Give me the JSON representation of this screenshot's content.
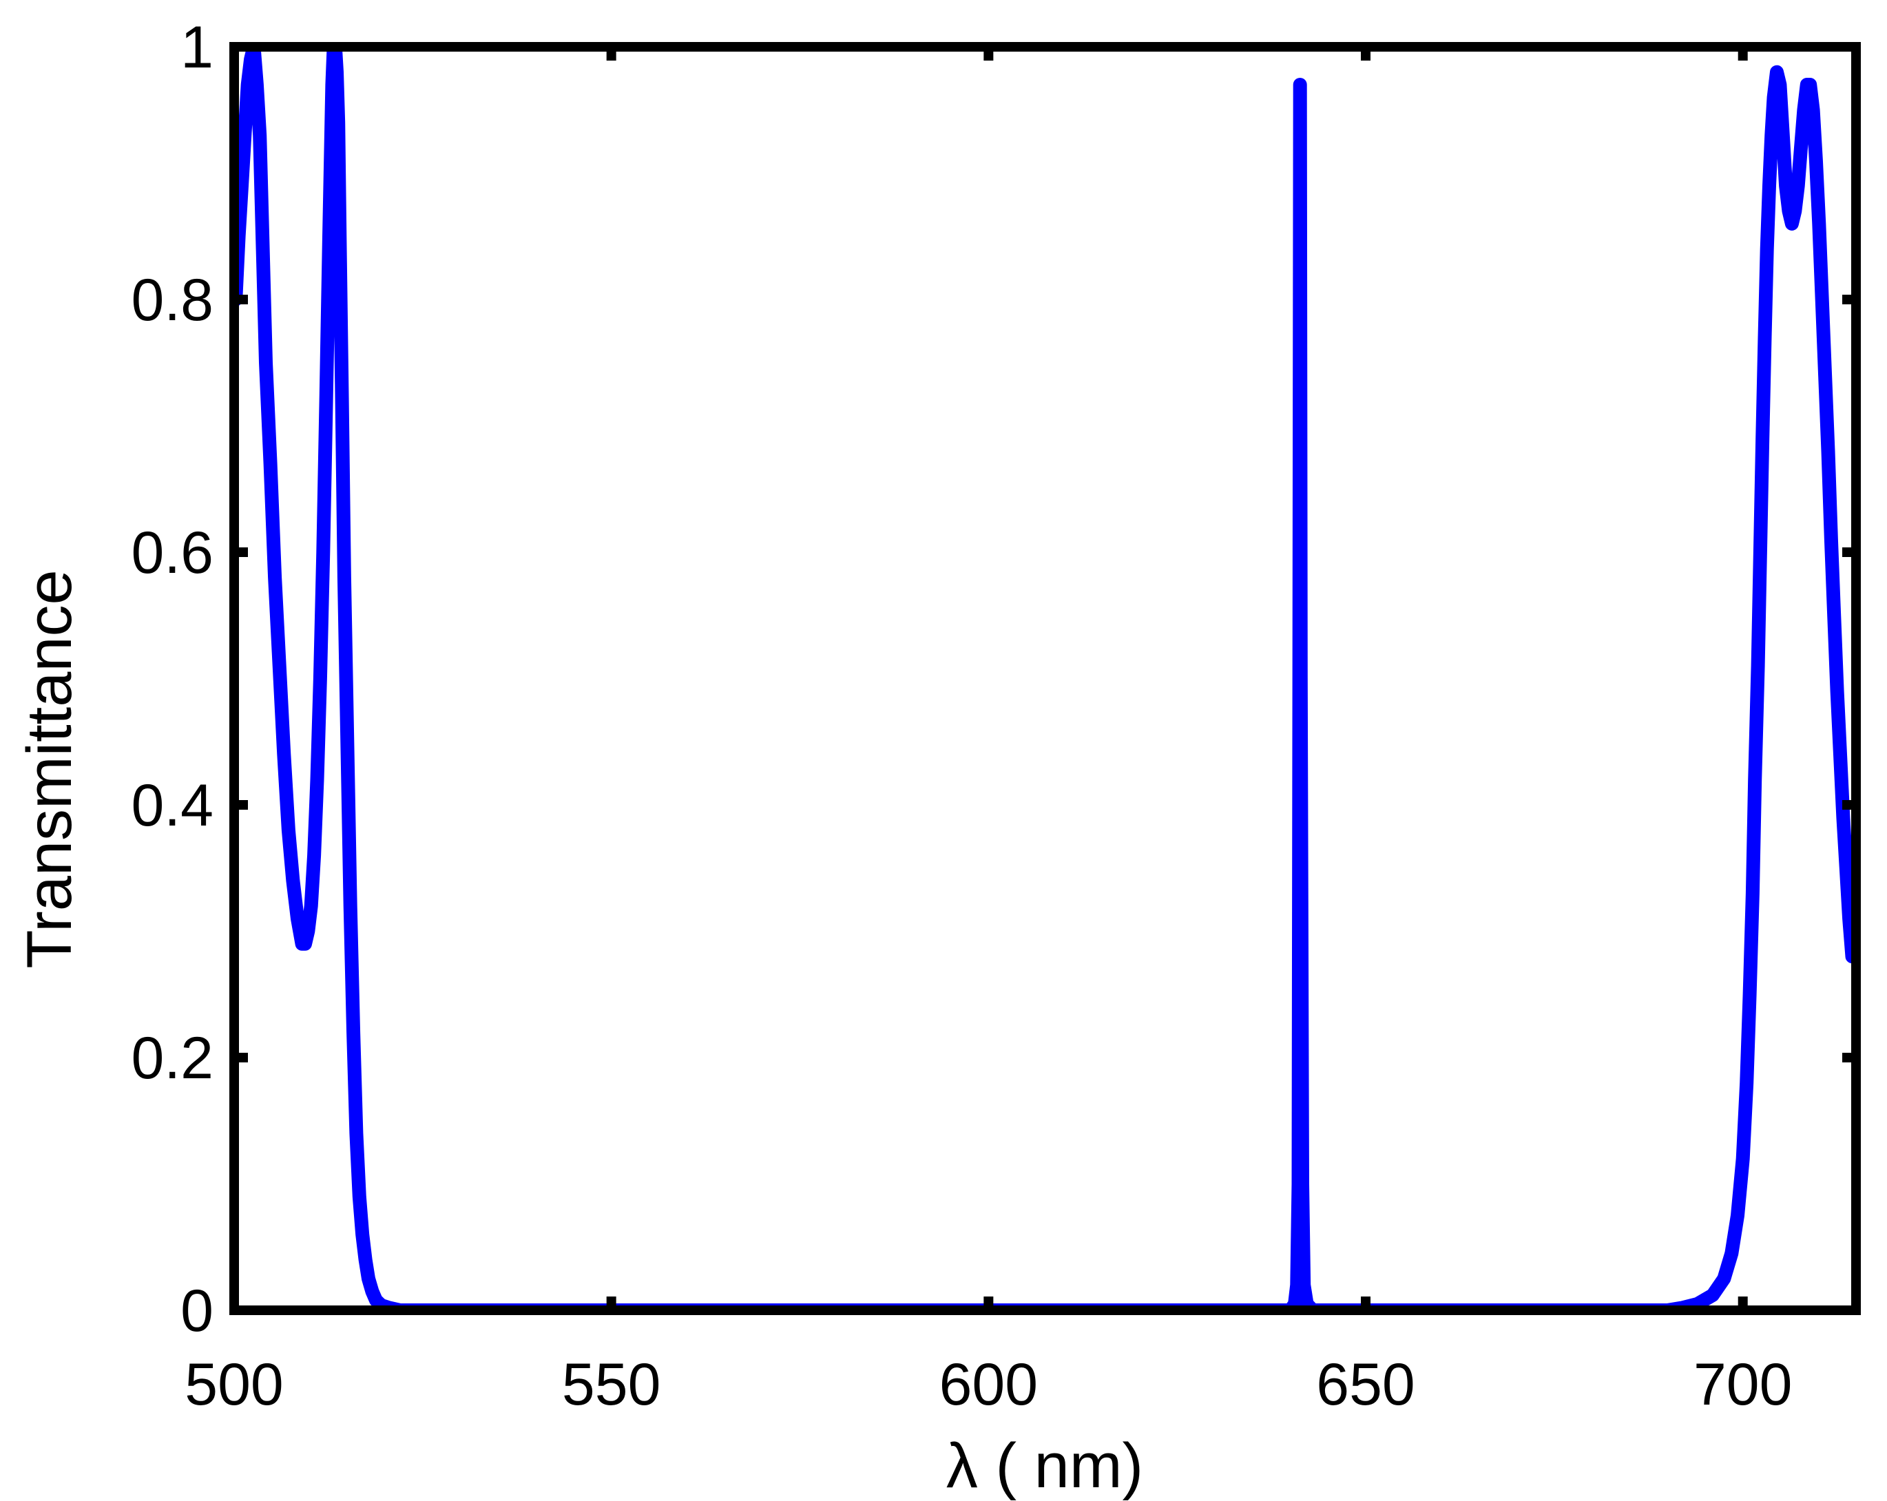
{
  "chart_data": {
    "type": "line",
    "title": "",
    "xlabel": "λ ( nm)",
    "ylabel": "Transmittance",
    "xlim": [
      500,
      715
    ],
    "ylim": [
      0,
      1
    ],
    "xticks": [
      500,
      550,
      600,
      650,
      700
    ],
    "xtick_labels": [
      "500",
      "550",
      "600",
      "650",
      "700"
    ],
    "yticks": [
      0,
      0.2,
      0.4,
      0.6,
      0.8,
      1
    ],
    "ytick_labels": [
      "0",
      "0.2",
      "0.4",
      "0.6",
      "0.8",
      "1"
    ],
    "grid": false,
    "legend": "none",
    "colors": {
      "line": "#0000ff",
      "axes": "#000000"
    },
    "series": [
      {
        "x": [
          500.2,
          500.6,
          501.0,
          501.4,
          501.8,
          502.2,
          502.6,
          503.0,
          503.4,
          503.8,
          504.2,
          504.8,
          505.4,
          506.0,
          506.6,
          507.2,
          507.8,
          508.4,
          509.0,
          509.4,
          509.8,
          510.2,
          510.6,
          511.0,
          511.4,
          511.8,
          512.2,
          512.6,
          513.0,
          513.2,
          513.4,
          513.6,
          513.8,
          514.0,
          514.3,
          514.6,
          515.0,
          515.4,
          515.8,
          516.2,
          516.6,
          517.0,
          517.4,
          517.8,
          518.3,
          518.8,
          519.5,
          520.5,
          522,
          530,
          560,
          600,
          640.0,
          640.6,
          640.9,
          641.1,
          641.2,
          641.3,
          641.4,
          641.6,
          641.8,
          642.2,
          643,
          660,
          680,
          690,
          692,
          694,
          696,
          697.5,
          698.5,
          699.3,
          700.0,
          700.5,
          700.9,
          701.3,
          701.6,
          702.0,
          702.3,
          702.6,
          702.9,
          703.2,
          703.5,
          703.8,
          704.1,
          704.5,
          704.9,
          705.3,
          705.7,
          706.1,
          706.5,
          706.9,
          707.3,
          707.7,
          708.1,
          708.5,
          708.9,
          709.3,
          709.7,
          710.1,
          710.5,
          710.9,
          711.3,
          711.7,
          712.1,
          712.5,
          712.9,
          713.3,
          713.7,
          714.1,
          714.5,
          714.9
        ],
        "y": [
          0.8,
          0.85,
          0.89,
          0.93,
          0.97,
          0.99,
          1.0,
          0.97,
          0.93,
          0.84,
          0.75,
          0.67,
          0.58,
          0.51,
          0.44,
          0.38,
          0.34,
          0.31,
          0.29,
          0.29,
          0.3,
          0.32,
          0.36,
          0.42,
          0.5,
          0.6,
          0.72,
          0.85,
          0.97,
          1.0,
          1.0,
          0.98,
          0.94,
          0.85,
          0.72,
          0.58,
          0.45,
          0.32,
          0.22,
          0.14,
          0.09,
          0.06,
          0.04,
          0.025,
          0.015,
          0.008,
          0.004,
          0.002,
          0.0,
          0.0,
          0.0,
          0.0,
          0.0,
          0.005,
          0.02,
          0.1,
          0.5,
          0.97,
          0.5,
          0.1,
          0.02,
          0.005,
          0.0,
          0.0,
          0.0,
          0.0,
          0.002,
          0.005,
          0.012,
          0.025,
          0.045,
          0.075,
          0.12,
          0.18,
          0.25,
          0.33,
          0.42,
          0.51,
          0.6,
          0.69,
          0.77,
          0.84,
          0.89,
          0.93,
          0.96,
          0.98,
          0.97,
          0.93,
          0.89,
          0.87,
          0.86,
          0.87,
          0.89,
          0.92,
          0.95,
          0.97,
          0.97,
          0.95,
          0.91,
          0.86,
          0.8,
          0.74,
          0.68,
          0.61,
          0.55,
          0.49,
          0.44,
          0.39,
          0.35,
          0.31,
          0.28,
          0.28
        ]
      }
    ]
  }
}
